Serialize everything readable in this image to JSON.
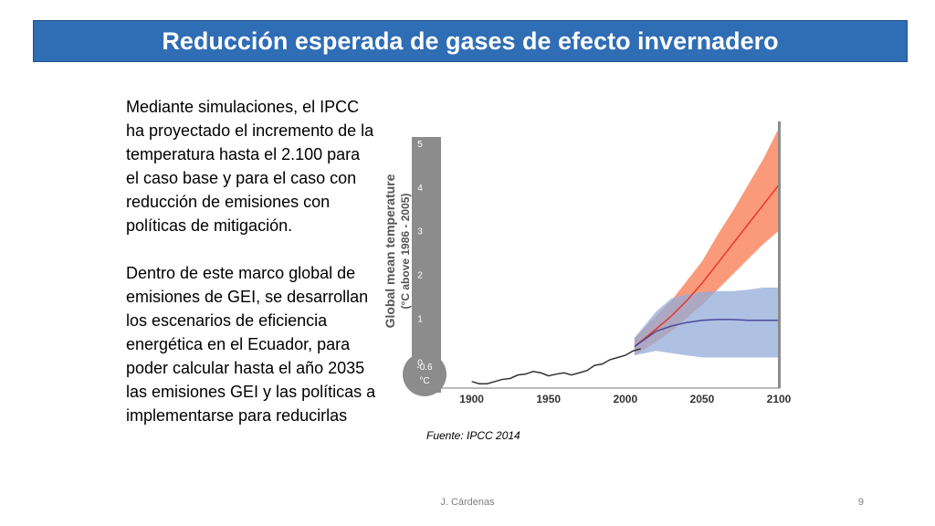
{
  "slide": {
    "title": "Reducción esperada de gases de efecto invernadero",
    "paragraph1": "Mediante simulaciones, el IPCC ha proyectado el incremento de la temperatura hasta el 2.100 para el caso base y para el caso con reducción de emisiones con políticas de mitigación.",
    "paragraph2": "Dentro de este marco global de emisiones de GEI, se desarrollan los escenarios de eficiencia energética en el Ecuador, para poder calcular hasta el año 2035 las emisiones GEI y las políticas a implementarse para reducirlas",
    "source": "Fuente: IPCC 2014",
    "author": "J. Cárdenas",
    "page_number": "9",
    "title_bar_color": "#2f6db5"
  },
  "chart_data": {
    "type": "line",
    "ylabel_line1": "Global mean temperature",
    "ylabel_line2": "(°C above 1986 - 2005)",
    "thermometer_bulb_labels": [
      "-0.6",
      "°C"
    ],
    "ylim": [
      -0.6,
      5.5
    ],
    "xlim": [
      1880,
      2100
    ],
    "x_ticks": [
      "1900",
      "1950",
      "2000",
      "2050",
      "2100"
    ],
    "y_ticks": [
      "0",
      "1",
      "2",
      "3",
      "4",
      "5"
    ],
    "colors": {
      "high": "#e8382b",
      "high_band": "#f8784f",
      "low": "#4a4a9a",
      "low_band": "#93acd8",
      "historical": "#333333"
    },
    "series": [
      {
        "x": [
          1900,
          1905,
          1910,
          1915,
          1920,
          1925,
          1930,
          1935,
          1940,
          1945,
          1950,
          1955,
          1960,
          1965,
          1970,
          1975,
          1980,
          1985,
          1990,
          1995,
          2000,
          2005,
          2010
        ],
        "values": [
          -0.45,
          -0.5,
          -0.5,
          -0.45,
          -0.4,
          -0.38,
          -0.3,
          -0.28,
          -0.22,
          -0.25,
          -0.32,
          -0.28,
          -0.25,
          -0.3,
          -0.25,
          -0.2,
          -0.08,
          -0.05,
          0.05,
          0.1,
          0.15,
          0.25,
          0.3
        ]
      },
      {
        "x": [
          2006,
          2020,
          2030,
          2040,
          2050,
          2060,
          2070,
          2080,
          2090,
          2100
        ],
        "values": [
          0.35,
          0.75,
          1.05,
          1.4,
          1.8,
          2.25,
          2.7,
          3.15,
          3.6,
          4.05
        ],
        "band_low": [
          0.15,
          0.45,
          0.7,
          1.0,
          1.3,
          1.65,
          2.0,
          2.35,
          2.7,
          3.0
        ],
        "band_high": [
          0.55,
          1.05,
          1.4,
          1.85,
          2.3,
          2.9,
          3.45,
          4.05,
          4.65,
          5.35
        ]
      },
      {
        "x": [
          2006,
          2020,
          2030,
          2040,
          2050,
          2060,
          2070,
          2080,
          2090,
          2100
        ],
        "values": [
          0.35,
          0.7,
          0.82,
          0.9,
          0.95,
          0.97,
          0.97,
          0.95,
          0.95,
          0.95
        ],
        "band_low": [
          0.15,
          0.25,
          0.2,
          0.15,
          0.1,
          0.1,
          0.1,
          0.1,
          0.1,
          0.1
        ],
        "band_high": [
          0.55,
          1.15,
          1.45,
          1.55,
          1.6,
          1.62,
          1.62,
          1.65,
          1.7,
          1.7
        ]
      }
    ]
  }
}
